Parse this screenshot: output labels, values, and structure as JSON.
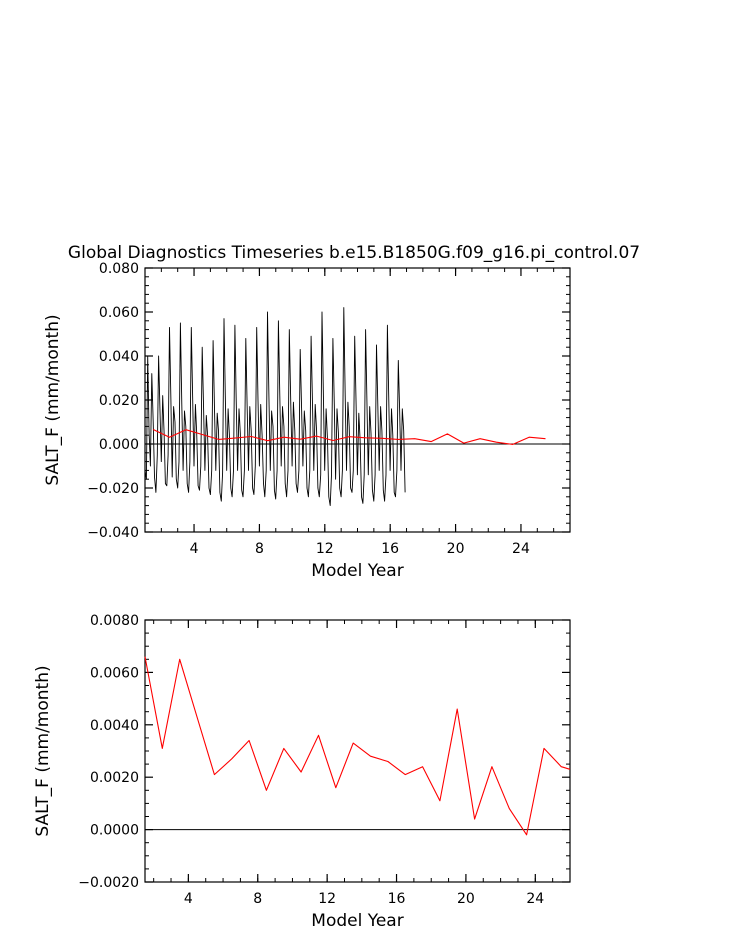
{
  "title": "Global Diagnostics Timeseries b.e15.B1850G.f09_g16.pi_control.07",
  "colors": {
    "monthly": "#000000",
    "annual": "#ff0000",
    "axis": "#000000"
  },
  "chart_data": [
    {
      "type": "line",
      "xlabel": "Model Year",
      "ylabel": "SALT_F (mm/month)",
      "xlim": [
        1,
        27
      ],
      "ylim": [
        -0.04,
        0.08
      ],
      "xticks": [
        4,
        8,
        12,
        16,
        20,
        24
      ],
      "xtick_labels": [
        "4",
        "8",
        "12",
        "16",
        "20",
        "24"
      ],
      "yticks": [
        -0.04,
        -0.02,
        0.0,
        0.02,
        0.04,
        0.06,
        0.08
      ],
      "ytick_labels": [
        "−0.040",
        "−0.020",
        "0.000",
        "0.020",
        "0.040",
        "0.060",
        "0.080"
      ],
      "zero_line": true,
      "series": [
        {
          "style": "monthly",
          "x_start": 1.0,
          "x_step": 0.0833,
          "values": [
            -0.012,
            -0.016,
            0.04,
            0.005,
            -0.01,
            0.032,
            0.01,
            -0.015,
            -0.022,
            -0.005,
            0.04,
            0.015,
            -0.008,
            0.022,
            0.005,
            -0.018,
            -0.019,
            -0.005,
            0.053,
            0.02,
            -0.015,
            0.017,
            0.01,
            -0.016,
            -0.02,
            -0.008,
            0.055,
            0.018,
            -0.012,
            0.015,
            0.008,
            -0.018,
            -0.022,
            -0.008,
            0.053,
            0.02,
            -0.01,
            0.018,
            0.005,
            -0.019,
            -0.021,
            -0.01,
            0.044,
            0.016,
            -0.012,
            0.013,
            0.004,
            -0.02,
            -0.023,
            -0.012,
            0.047,
            0.018,
            -0.012,
            0.014,
            0.006,
            -0.022,
            -0.026,
            -0.013,
            0.057,
            0.022,
            -0.012,
            0.016,
            0.004,
            -0.02,
            -0.024,
            -0.012,
            0.054,
            0.02,
            -0.012,
            0.016,
            0.005,
            -0.021,
            -0.024,
            -0.012,
            0.048,
            0.018,
            -0.012,
            0.017,
            0.006,
            -0.02,
            -0.023,
            -0.01,
            0.053,
            0.02,
            -0.01,
            0.018,
            0.004,
            -0.018,
            -0.024,
            -0.012,
            0.06,
            0.022,
            -0.012,
            0.015,
            0.008,
            -0.021,
            -0.025,
            -0.012,
            0.056,
            0.022,
            -0.01,
            0.017,
            0.008,
            -0.018,
            -0.024,
            -0.012,
            0.052,
            0.02,
            -0.01,
            0.019,
            0.006,
            -0.018,
            -0.022,
            -0.012,
            0.043,
            0.016,
            -0.01,
            0.015,
            0.006,
            -0.02,
            -0.024,
            -0.012,
            0.049,
            0.018,
            -0.012,
            0.018,
            0.006,
            -0.02,
            -0.024,
            -0.014,
            0.06,
            0.022,
            -0.012,
            0.016,
            0.002,
            -0.024,
            -0.028,
            -0.014,
            0.048,
            0.018,
            -0.016,
            0.016,
            0.005,
            -0.02,
            -0.024,
            -0.012,
            0.062,
            0.022,
            -0.012,
            0.019,
            0.008,
            -0.02,
            -0.022,
            -0.012,
            0.049,
            0.018,
            -0.014,
            0.014,
            0.002,
            -0.024,
            -0.027,
            -0.014,
            0.052,
            0.02,
            -0.014,
            0.017,
            0.005,
            -0.021,
            -0.026,
            -0.014,
            0.045,
            0.018,
            -0.012,
            0.017,
            0.006,
            -0.021,
            -0.026,
            -0.014,
            0.054,
            0.022,
            -0.012,
            0.016,
            0.004,
            -0.022,
            -0.024,
            -0.012,
            0.038,
            0.016,
            -0.012,
            0.016,
            0.006,
            -0.022
          ]
        },
        {
          "style": "annual",
          "x": [
            1.5,
            2.5,
            3.5,
            4.5,
            5.5,
            6.5,
            7.5,
            8.5,
            9.5,
            10.5,
            11.5,
            12.5,
            13.5,
            14.5,
            15.5,
            16.5,
            17.5,
            18.5,
            19.5,
            20.5,
            21.5,
            22.5,
            23.5,
            24.5,
            25.5
          ],
          "values": [
            0.0066,
            0.0031,
            0.0065,
            0.0043,
            0.0021,
            0.0027,
            0.0034,
            0.0015,
            0.0031,
            0.0022,
            0.0036,
            0.0016,
            0.0033,
            0.0028,
            0.0026,
            0.0021,
            0.0024,
            0.0011,
            0.0046,
            0.0004,
            0.0024,
            0.0008,
            -0.0002,
            0.0031,
            0.0024
          ]
        }
      ]
    },
    {
      "type": "line",
      "xlabel": "Model Year",
      "ylabel": "SALT_F (mm/month)",
      "xlim": [
        1.5,
        26
      ],
      "ylim": [
        -0.002,
        0.008
      ],
      "xticks": [
        4,
        8,
        12,
        16,
        20,
        24
      ],
      "xtick_labels": [
        "4",
        "8",
        "12",
        "16",
        "20",
        "24"
      ],
      "yticks": [
        -0.002,
        0.0,
        0.002,
        0.004,
        0.006,
        0.008
      ],
      "ytick_labels": [
        "−0.0020",
        "0.0000",
        "0.0020",
        "0.0040",
        "0.0060",
        "0.0080"
      ],
      "zero_line": true,
      "series": [
        {
          "style": "annual",
          "x": [
            1.5,
            2.5,
            3.5,
            4.5,
            5.5,
            6.5,
            7.5,
            8.5,
            9.5,
            10.5,
            11.5,
            12.5,
            13.5,
            14.5,
            15.5,
            16.5,
            17.5,
            18.5,
            19.5,
            20.5,
            21.5,
            22.5,
            23.5,
            24.5,
            25.5,
            26.0
          ],
          "values": [
            0.0066,
            0.0031,
            0.0065,
            0.0043,
            0.0021,
            0.0027,
            0.0034,
            0.0015,
            0.0031,
            0.0022,
            0.0036,
            0.0016,
            0.0033,
            0.0028,
            0.0026,
            0.0021,
            0.0024,
            0.0011,
            0.0046,
            0.0004,
            0.0024,
            0.0008,
            -0.0002,
            0.0031,
            0.0024,
            0.0023
          ]
        }
      ]
    }
  ]
}
